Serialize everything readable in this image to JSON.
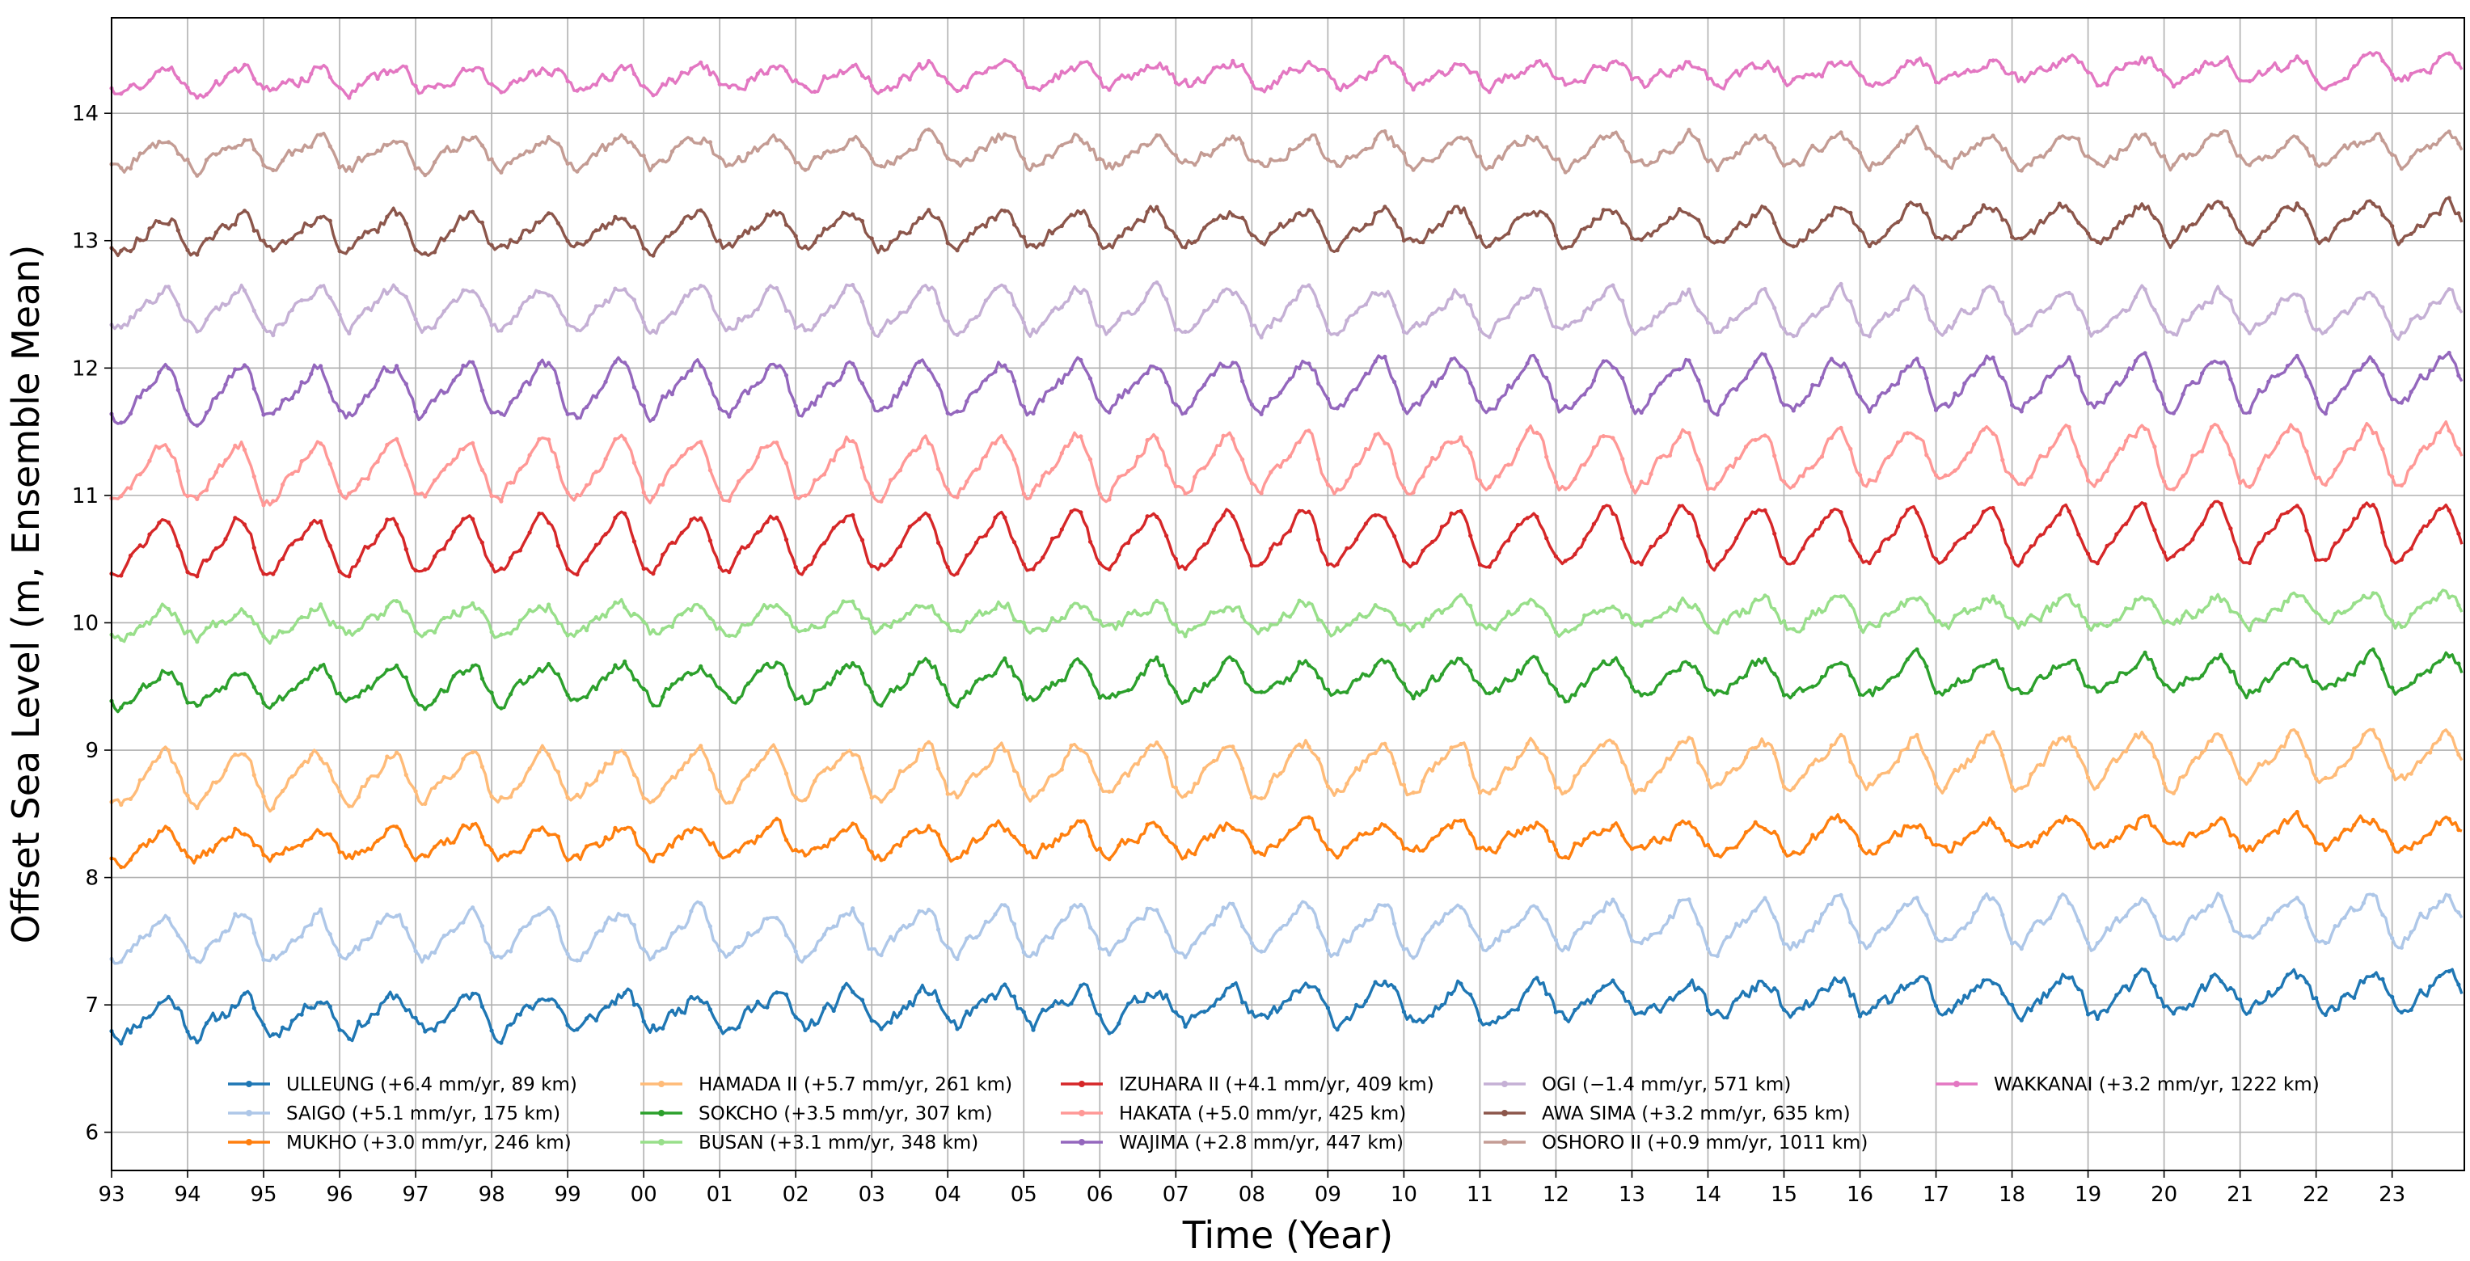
{
  "chart_data": {
    "type": "line",
    "title": "",
    "xlabel": "Time (Year)",
    "ylabel": "Offset Sea Level (m, Ensemble Mean)",
    "xlim": [
      1993.0,
      2023.95
    ],
    "ylim": [
      5.7,
      14.75
    ],
    "grid": true,
    "legend_position": "bottom",
    "x_ticks": [
      {
        "value": 1993,
        "label": "93"
      },
      {
        "value": 1994,
        "label": "94"
      },
      {
        "value": 1995,
        "label": "95"
      },
      {
        "value": 1996,
        "label": "96"
      },
      {
        "value": 1997,
        "label": "97"
      },
      {
        "value": 1998,
        "label": "98"
      },
      {
        "value": 1999,
        "label": "99"
      },
      {
        "value": 2000,
        "label": "00"
      },
      {
        "value": 2001,
        "label": "01"
      },
      {
        "value": 2002,
        "label": "02"
      },
      {
        "value": 2003,
        "label": "03"
      },
      {
        "value": 2004,
        "label": "04"
      },
      {
        "value": 2005,
        "label": "05"
      },
      {
        "value": 2006,
        "label": "06"
      },
      {
        "value": 2007,
        "label": "07"
      },
      {
        "value": 2008,
        "label": "08"
      },
      {
        "value": 2009,
        "label": "09"
      },
      {
        "value": 2010,
        "label": "10"
      },
      {
        "value": 2011,
        "label": "11"
      },
      {
        "value": 2012,
        "label": "12"
      },
      {
        "value": 2013,
        "label": "13"
      },
      {
        "value": 2014,
        "label": "14"
      },
      {
        "value": 2015,
        "label": "15"
      },
      {
        "value": 2016,
        "label": "16"
      },
      {
        "value": 2017,
        "label": "17"
      },
      {
        "value": 2018,
        "label": "18"
      },
      {
        "value": 2019,
        "label": "19"
      },
      {
        "value": 2020,
        "label": "20"
      },
      {
        "value": 2021,
        "label": "21"
      },
      {
        "value": 2022,
        "label": "22"
      },
      {
        "value": 2023,
        "label": "23"
      }
    ],
    "y_ticks": [
      {
        "value": 6,
        "label": "6"
      },
      {
        "value": 7,
        "label": "7"
      },
      {
        "value": 8,
        "label": "8"
      },
      {
        "value": 9,
        "label": "9"
      },
      {
        "value": 10,
        "label": "10"
      },
      {
        "value": 11,
        "label": "11"
      },
      {
        "value": 12,
        "label": "12"
      },
      {
        "value": 13,
        "label": "13"
      },
      {
        "value": 14,
        "label": "14"
      }
    ],
    "series": [
      {
        "name": "ULLEUNG (+6.4 mm/yr, 89 km)",
        "color": "#1f77b4",
        "offset": 7.0,
        "amplitude": 0.13,
        "trend_mm_per_yr": 6.4,
        "phase": 0.68,
        "noise": 0.05,
        "seed": 11
      },
      {
        "name": "SAIGO (+5.1 mm/yr, 175 km)",
        "color": "#aec7e8",
        "offset": 7.6,
        "amplitude": 0.17,
        "trend_mm_per_yr": 5.1,
        "phase": 0.65,
        "noise": 0.04,
        "seed": 23
      },
      {
        "name": "MUKHO (+3.0 mm/yr, 246 km)",
        "color": "#ff7f0e",
        "offset": 8.3,
        "amplitude": 0.11,
        "trend_mm_per_yr": 3.0,
        "phase": 0.66,
        "noise": 0.04,
        "seed": 37
      },
      {
        "name": "HAMADA II (+5.7 mm/yr, 261 km)",
        "color": "#ffbb78",
        "offset": 8.85,
        "amplitude": 0.18,
        "trend_mm_per_yr": 5.7,
        "phase": 0.65,
        "noise": 0.04,
        "seed": 41
      },
      {
        "name": "SOKCHO (+3.5 mm/yr, 307 km)",
        "color": "#2ca02c",
        "offset": 9.55,
        "amplitude": 0.13,
        "trend_mm_per_yr": 3.5,
        "phase": 0.67,
        "noise": 0.04,
        "seed": 53
      },
      {
        "name": "BUSAN (+3.1 mm/yr, 348 km)",
        "color": "#98df8a",
        "offset": 10.05,
        "amplitude": 0.1,
        "trend_mm_per_yr": 3.1,
        "phase": 0.66,
        "noise": 0.04,
        "seed": 67
      },
      {
        "name": "IZUHARA II (+4.1 mm/yr, 409 km)",
        "color": "#d62728",
        "offset": 10.65,
        "amplitude": 0.2,
        "trend_mm_per_yr": 4.1,
        "phase": 0.63,
        "noise": 0.03,
        "seed": 71
      },
      {
        "name": "HAKATA (+5.0 mm/yr, 425 km)",
        "color": "#ff9896",
        "offset": 11.25,
        "amplitude": 0.2,
        "trend_mm_per_yr": 5.0,
        "phase": 0.64,
        "noise": 0.04,
        "seed": 83
      },
      {
        "name": "WAJIMA (+2.8 mm/yr, 447 km)",
        "color": "#9467bd",
        "offset": 11.85,
        "amplitude": 0.18,
        "trend_mm_per_yr": 2.8,
        "phase": 0.65,
        "noise": 0.04,
        "seed": 97
      },
      {
        "name": "OGI (−1.4 mm/yr, 571 km)",
        "color": "#c5b0d5",
        "offset": 12.45,
        "amplitude": 0.15,
        "trend_mm_per_yr": -1.4,
        "phase": 0.66,
        "noise": 0.04,
        "seed": 101
      },
      {
        "name": "AWA SIMA (+3.2 mm/yr, 635 km)",
        "color": "#8c564b",
        "offset": 13.1,
        "amplitude": 0.13,
        "trend_mm_per_yr": 3.2,
        "phase": 0.67,
        "noise": 0.04,
        "seed": 113
      },
      {
        "name": "OSHORO II (+0.9 mm/yr, 1011 km)",
        "color": "#c49c94",
        "offset": 13.7,
        "amplitude": 0.11,
        "trend_mm_per_yr": 0.9,
        "phase": 0.68,
        "noise": 0.04,
        "seed": 127
      },
      {
        "name": "WAKKANAI (+3.2 mm/yr, 1222 km)",
        "color": "#e377c2",
        "offset": 14.3,
        "amplitude": 0.08,
        "trend_mm_per_yr": 3.2,
        "phase": 0.7,
        "noise": 0.04,
        "seed": 131
      }
    ]
  }
}
